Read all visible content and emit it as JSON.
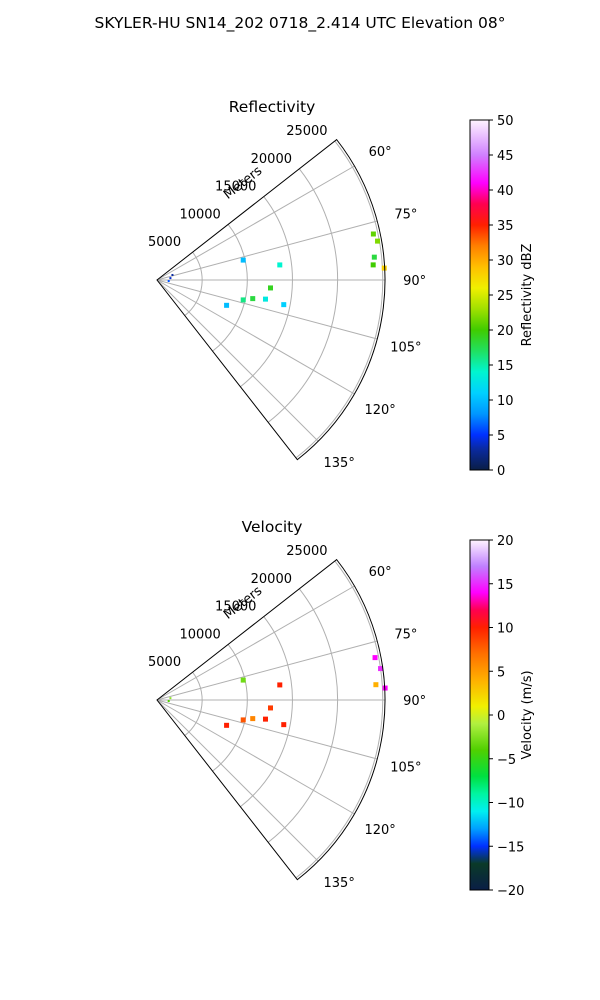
{
  "suptitle": "SKYLER-HU  SN14_202  0718_2.414 UTC Elevation 08°",
  "chart_data": [
    {
      "type": "polar-sector",
      "title": "Reflectivity",
      "r_label": "Meters",
      "r_ticks": [
        "5000",
        "10000",
        "15000",
        "20000",
        "25000"
      ],
      "r_values": [
        5000,
        10000,
        15000,
        20000,
        25000
      ],
      "theta_range_deg": [
        52,
        142
      ],
      "theta_ticks": [
        "60°",
        "75°",
        "90°",
        "105°",
        "120°",
        "135°"
      ],
      "theta_values": [
        60,
        75,
        90,
        105,
        120,
        135
      ],
      "grid": true,
      "colorbar": {
        "label": "Reflectivity dBZ",
        "range": [
          0,
          50
        ],
        "ticks": [
          "0",
          "5",
          "10",
          "15",
          "20",
          "25",
          "30",
          "35",
          "40",
          "45",
          "50"
        ],
        "tick_values": [
          0,
          5,
          10,
          15,
          20,
          25,
          30,
          35,
          40,
          45,
          50
        ],
        "stops": [
          [
            0,
            "#0a1e46"
          ],
          [
            3,
            "#0a2aa0"
          ],
          [
            5,
            "#0030ff"
          ],
          [
            8,
            "#0096ff"
          ],
          [
            11,
            "#00d0ff"
          ],
          [
            14,
            "#00f5d0"
          ],
          [
            17,
            "#20e060"
          ],
          [
            20,
            "#40cc00"
          ],
          [
            23,
            "#a0e000"
          ],
          [
            26,
            "#f0f000"
          ],
          [
            29,
            "#ffc000"
          ],
          [
            32,
            "#ff8000"
          ],
          [
            35,
            "#ff2000"
          ],
          [
            38,
            "#ff0050"
          ],
          [
            41,
            "#ff00ff"
          ],
          [
            45,
            "#d080ff"
          ],
          [
            50,
            "#fff4ff"
          ]
        ]
      },
      "echoes": [
        {
          "theta": 78,
          "r": 24500,
          "value": 21
        },
        {
          "theta": 80,
          "r": 24800,
          "value": 22
        },
        {
          "theta": 84,
          "r": 24200,
          "value": 18
        },
        {
          "theta": 87,
          "r": 25200,
          "value": 28
        },
        {
          "theta": 86,
          "r": 24000,
          "value": 20
        },
        {
          "theta": 83,
          "r": 13700,
          "value": 14
        },
        {
          "theta": 77,
          "r": 9800,
          "value": 10
        },
        {
          "theta": 94,
          "r": 12600,
          "value": 19
        },
        {
          "theta": 101,
          "r": 10800,
          "value": 18
        },
        {
          "theta": 103,
          "r": 9800,
          "value": 16
        },
        {
          "theta": 100,
          "r": 12200,
          "value": 13
        },
        {
          "theta": 101,
          "r": 14300,
          "value": 11
        },
        {
          "theta": 110,
          "r": 8200,
          "value": 10
        },
        {
          "theta": 82,
          "r": 1500,
          "value": 4
        },
        {
          "theta": 95,
          "r": 1300,
          "value": 6
        },
        {
          "theta": 72,
          "r": 1800,
          "value": 3
        }
      ]
    },
    {
      "type": "polar-sector",
      "title": "Velocity",
      "r_label": "Meters",
      "r_ticks": [
        "5000",
        "10000",
        "15000",
        "20000",
        "25000"
      ],
      "r_values": [
        5000,
        10000,
        15000,
        20000,
        25000
      ],
      "theta_range_deg": [
        52,
        142
      ],
      "theta_ticks": [
        "60°",
        "75°",
        "90°",
        "105°",
        "120°",
        "135°"
      ],
      "theta_values": [
        60,
        75,
        90,
        105,
        120,
        135
      ],
      "grid": true,
      "colorbar": {
        "label": "Velocity (m/s)",
        "range": [
          -20,
          20
        ],
        "ticks": [
          "−20",
          "−15",
          "−10",
          "−5",
          "0",
          "5",
          "10",
          "15",
          "20"
        ],
        "tick_values": [
          -20,
          -15,
          -10,
          -5,
          0,
          5,
          10,
          15,
          20
        ],
        "stops": [
          [
            -20,
            "#0a1e46"
          ],
          [
            -17,
            "#0a3a28"
          ],
          [
            -15,
            "#0030ff"
          ],
          [
            -13,
            "#00a0ff"
          ],
          [
            -11,
            "#00f0f0"
          ],
          [
            -9,
            "#00f5a0"
          ],
          [
            -7,
            "#00e040"
          ],
          [
            -4,
            "#50d000"
          ],
          [
            -1,
            "#b0f040"
          ],
          [
            1,
            "#f0f000"
          ],
          [
            4,
            "#ffb000"
          ],
          [
            7,
            "#ff7000"
          ],
          [
            10,
            "#ff2000"
          ],
          [
            12,
            "#ff0050"
          ],
          [
            14,
            "#ff00ff"
          ],
          [
            17,
            "#c080ff"
          ],
          [
            20,
            "#fff4ff"
          ]
        ]
      },
      "echoes": [
        {
          "theta": 79,
          "r": 24600,
          "value": 14
        },
        {
          "theta": 82,
          "r": 25000,
          "value": 15
        },
        {
          "theta": 86,
          "r": 24300,
          "value": 4
        },
        {
          "theta": 87,
          "r": 25300,
          "value": 14
        },
        {
          "theta": 83,
          "r": 13700,
          "value": 10
        },
        {
          "theta": 77,
          "r": 9800,
          "value": -3
        },
        {
          "theta": 94,
          "r": 12600,
          "value": 9
        },
        {
          "theta": 101,
          "r": 10800,
          "value": 6
        },
        {
          "theta": 103,
          "r": 9800,
          "value": 8
        },
        {
          "theta": 100,
          "r": 12200,
          "value": 10
        },
        {
          "theta": 101,
          "r": 14300,
          "value": 10
        },
        {
          "theta": 110,
          "r": 8200,
          "value": 10
        },
        {
          "theta": 82,
          "r": 1500,
          "value": -2
        },
        {
          "theta": 95,
          "r": 1300,
          "value": -4
        }
      ]
    }
  ]
}
